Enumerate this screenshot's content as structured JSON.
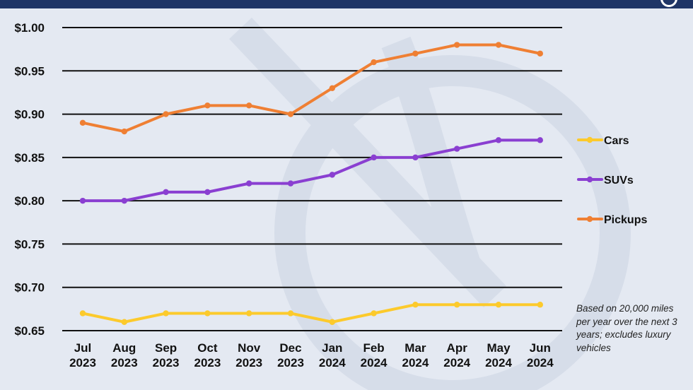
{
  "chart_data": {
    "type": "line",
    "categories": [
      [
        "Jul",
        "2023"
      ],
      [
        "Aug",
        "2023"
      ],
      [
        "Sep",
        "2023"
      ],
      [
        "Oct",
        "2023"
      ],
      [
        "Nov",
        "2023"
      ],
      [
        "Dec",
        "2023"
      ],
      [
        "Jan",
        "2024"
      ],
      [
        "Feb",
        "2024"
      ],
      [
        "Mar",
        "2024"
      ],
      [
        "Apr",
        "2024"
      ],
      [
        "May",
        "2024"
      ],
      [
        "Jun",
        "2024"
      ]
    ],
    "ylim": [
      0.65,
      1.0
    ],
    "yticks": [
      1.0,
      0.95,
      0.9,
      0.85,
      0.8,
      0.75,
      0.7,
      0.65
    ],
    "ytick_labels": [
      "$1.00",
      "$0.95",
      "$0.90",
      "$0.85",
      "$0.80",
      "$0.75",
      "$0.70",
      "$0.65"
    ],
    "grid": "horizontal",
    "legend_placement": "right",
    "series": [
      {
        "name": "Cars",
        "color": "#fcca2c",
        "values": [
          0.67,
          0.66,
          0.67,
          0.67,
          0.67,
          0.67,
          0.66,
          0.67,
          0.68,
          0.68,
          0.68,
          0.68
        ]
      },
      {
        "name": "SUVs",
        "color": "#8a3fd1",
        "values": [
          0.8,
          0.8,
          0.81,
          0.81,
          0.82,
          0.82,
          0.83,
          0.85,
          0.85,
          0.86,
          0.87,
          0.87
        ]
      },
      {
        "name": "Pickups",
        "color": "#ef7f33",
        "values": [
          0.89,
          0.88,
          0.9,
          0.91,
          0.91,
          0.9,
          0.93,
          0.96,
          0.97,
          0.98,
          0.98,
          0.97
        ]
      }
    ],
    "footnote": "Based on 20,000 miles per year over the next 3 years; excludes luxury vehicles"
  },
  "colors": {
    "background": "#e4e9f2",
    "header_bar": "#1f3566",
    "gridline": "#111111"
  }
}
